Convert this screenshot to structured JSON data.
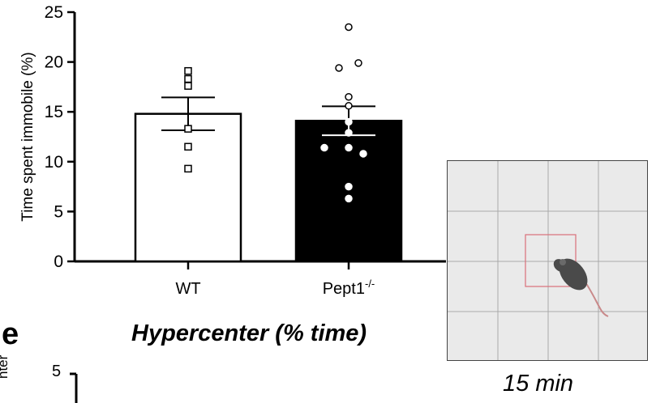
{
  "panel_e": {
    "letter": "e",
    "title": "Hypercenter (% time)"
  },
  "arena": {
    "caption": "15 min",
    "grid_color": "#aaaaaa",
    "center_color": "#d9707a",
    "mouse_color": "#4a4a4a",
    "tail_color": "#c9898a"
  },
  "partial_chart": {
    "ylabel_fragment": "nter",
    "tick_label": "5"
  },
  "chart_data": {
    "type": "bar",
    "ylabel": "Time spent immobile (%)",
    "ylim": [
      0,
      25
    ],
    "yticks": [
      0,
      5,
      10,
      15,
      20,
      25
    ],
    "categories": [
      "WT",
      "Pept1-/-"
    ],
    "category_labels": [
      {
        "main": "WT",
        "sup": ""
      },
      {
        "main": "Pept1",
        "sup": "-/-"
      }
    ],
    "bar_colors": [
      "#ffffff",
      "#000000"
    ],
    "values": [
      14.8,
      14.1
    ],
    "sem": [
      1.65,
      1.45
    ],
    "points": [
      [
        19.1,
        18.3,
        17.6,
        13.3,
        11.5,
        9.3
      ],
      [
        23.5,
        19.9,
        19.4,
        16.5,
        15.6,
        14.0,
        12.9,
        11.4,
        11.4,
        10.8,
        7.5,
        6.3
      ]
    ],
    "point_markers": [
      "square",
      "circle"
    ]
  }
}
